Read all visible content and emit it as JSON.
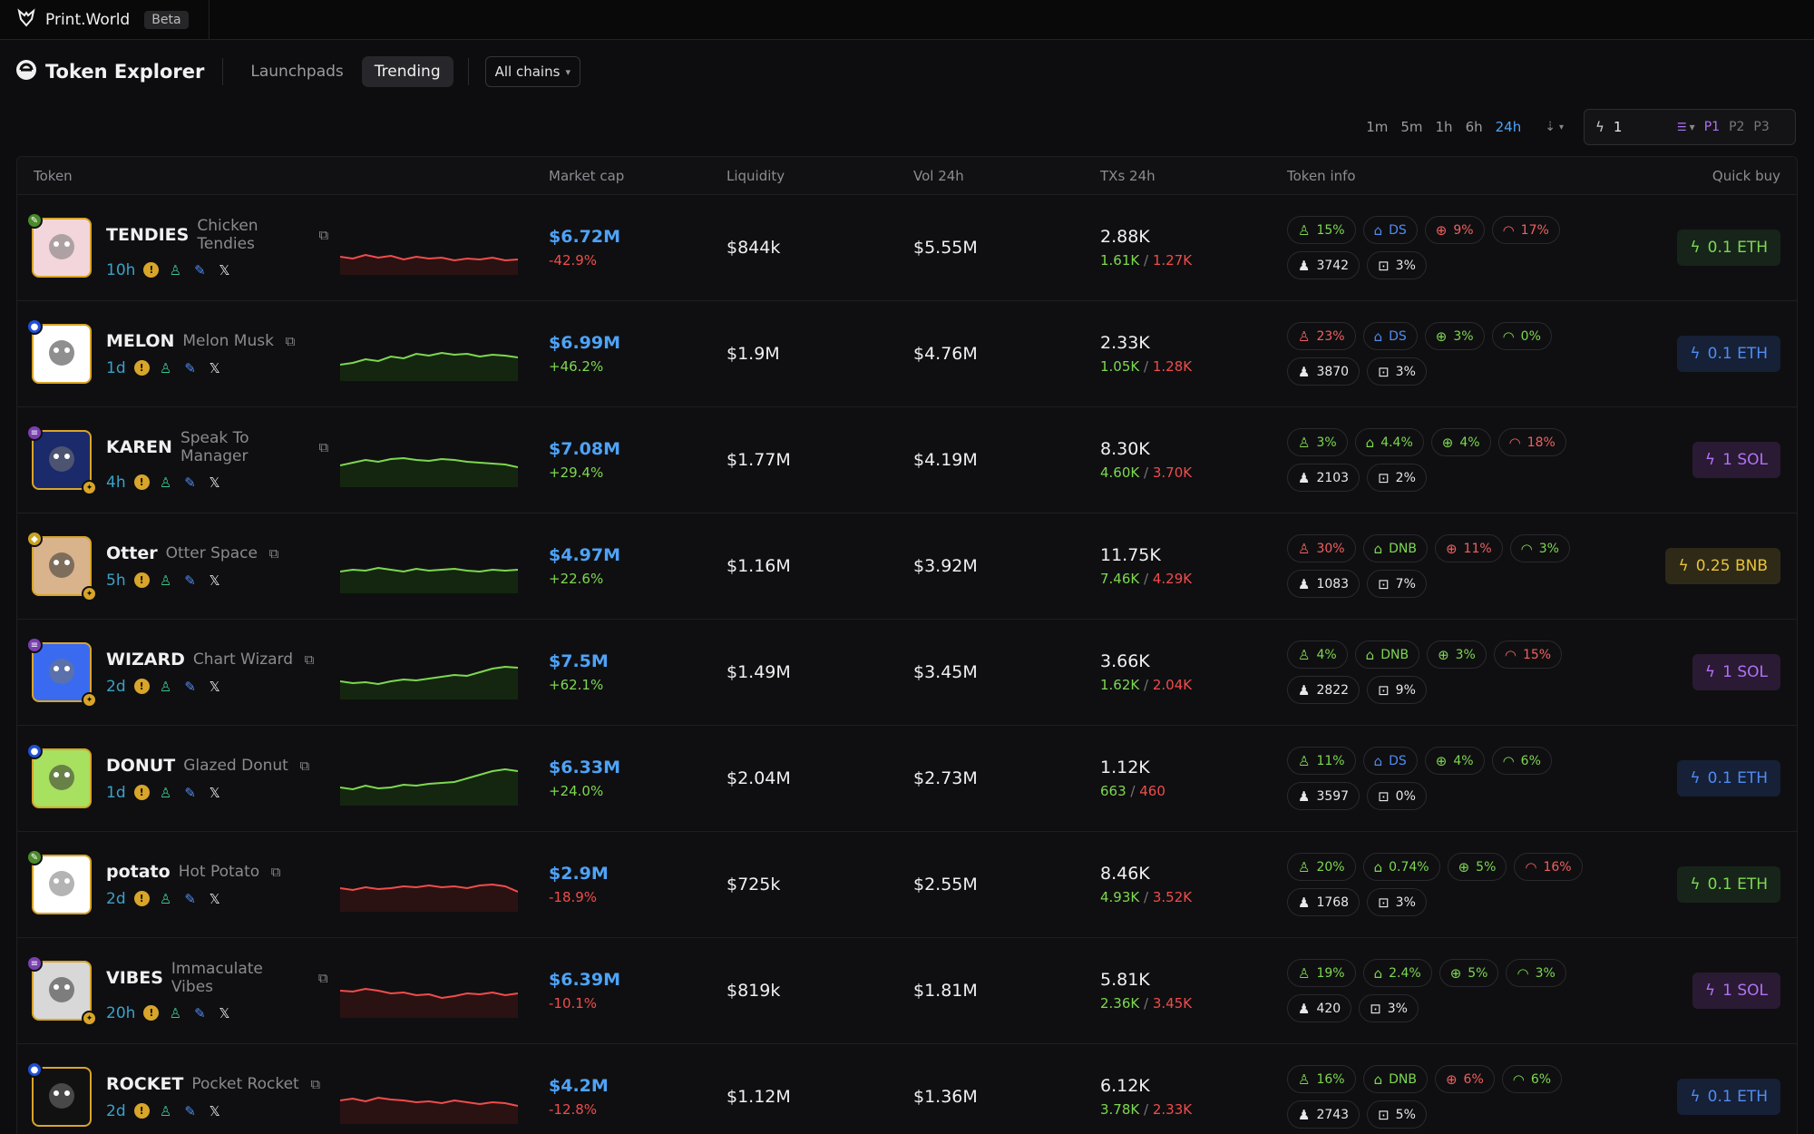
{
  "app": {
    "name": "Print.World",
    "badge": "Beta"
  },
  "nav": {
    "title": "Token Explorer",
    "tabs": [
      {
        "label": "Launchpads"
      },
      {
        "label": "Trending"
      }
    ],
    "chain_select": "All chains"
  },
  "controls": {
    "timeframes": [
      "1m",
      "5m",
      "1h",
      "6h",
      "24h"
    ],
    "active_timeframe": "24h",
    "quick_buy_amount": "1",
    "presets": [
      "P1",
      "P2",
      "P3"
    ],
    "active_preset": "P1"
  },
  "columns": {
    "token": "Token",
    "market_cap": "Market cap",
    "liquidity": "Liquidity",
    "vol": "Vol 24h",
    "txs": "TXs 24h",
    "info": "Token info",
    "quick_buy": "Quick buy"
  },
  "colors": {
    "accent_blue": "#4ea3f8",
    "up": "#7dd850",
    "down": "#f04c4c",
    "gold": "#d8a52a",
    "purple": "#b072f5"
  },
  "rows": [
    {
      "symbol": "TENDIES",
      "name": "Chicken Tendies",
      "age": "10h",
      "chain": "eth",
      "mc": "$6.72M",
      "chg": "-42.9%",
      "liq": "$844k",
      "vol": "$5.55M",
      "tx": "2.88K",
      "buys": "1.61K",
      "sells": "1.27K",
      "info": {
        "top": "15%",
        "dev": "DS",
        "snipers": "9%",
        "insiders": "17%",
        "holders": "3742",
        "bots": "3%"
      },
      "qb": "0.1 ETH"
    },
    {
      "symbol": "MELON",
      "name": "Melon Musk",
      "age": "1d",
      "chain": "base",
      "mc": "$6.99M",
      "chg": "+46.2%",
      "liq": "$1.9M",
      "vol": "$4.76M",
      "tx": "2.33K",
      "buys": "1.05K",
      "sells": "1.28K",
      "info": {
        "top": "23%",
        "dev": "DS",
        "snipers": "3%",
        "insiders": "0%",
        "holders": "3870",
        "bots": "3%"
      },
      "qb": "0.1 ETH"
    },
    {
      "symbol": "KAREN",
      "name": "Speak To Manager",
      "age": "4h",
      "chain": "sol",
      "mc": "$7.08M",
      "chg": "+29.4%",
      "liq": "$1.77M",
      "vol": "$4.19M",
      "tx": "8.30K",
      "buys": "4.60K",
      "sells": "3.70K",
      "info": {
        "top": "3%",
        "dev": "4.4%",
        "snipers": "4%",
        "insiders": "18%",
        "holders": "2103",
        "bots": "2%"
      },
      "qb": "1 SOL"
    },
    {
      "symbol": "Otter",
      "name": "Otter Space",
      "age": "5h",
      "chain": "bnb",
      "mc": "$4.97M",
      "chg": "+22.6%",
      "liq": "$1.16M",
      "vol": "$3.92M",
      "tx": "11.75K",
      "buys": "7.46K",
      "sells": "4.29K",
      "info": {
        "top": "30%",
        "dev": "DNB",
        "snipers": "11%",
        "insiders": "3%",
        "holders": "1083",
        "bots": "7%"
      },
      "qb": "0.25 BNB"
    },
    {
      "symbol": "WIZARD",
      "name": "Chart Wizard",
      "age": "2d",
      "chain": "sol",
      "mc": "$7.5M",
      "chg": "+62.1%",
      "liq": "$1.49M",
      "vol": "$3.45M",
      "tx": "3.66K",
      "buys": "1.62K",
      "sells": "2.04K",
      "info": {
        "top": "4%",
        "dev": "DNB",
        "snipers": "3%",
        "insiders": "15%",
        "holders": "2822",
        "bots": "9%"
      },
      "qb": "1 SOL"
    },
    {
      "symbol": "DONUT",
      "name": "Glazed Donut",
      "age": "1d",
      "chain": "base",
      "mc": "$6.33M",
      "chg": "+24.0%",
      "liq": "$2.04M",
      "vol": "$2.73M",
      "tx": "1.12K",
      "buys": "663",
      "sells": "460",
      "info": {
        "top": "11%",
        "dev": "DS",
        "snipers": "4%",
        "insiders": "6%",
        "holders": "3597",
        "bots": "0%"
      },
      "qb": "0.1 ETH"
    },
    {
      "symbol": "potato",
      "name": "Hot Potato",
      "age": "2d",
      "chain": "eth",
      "mc": "$2.9M",
      "chg": "-18.9%",
      "liq": "$725k",
      "vol": "$2.55M",
      "tx": "8.46K",
      "buys": "4.93K",
      "sells": "3.52K",
      "info": {
        "top": "20%",
        "dev": "0.74%",
        "snipers": "5%",
        "insiders": "16%",
        "holders": "1768",
        "bots": "3%"
      },
      "qb": "0.1 ETH"
    },
    {
      "symbol": "VIBES",
      "name": "Immaculate Vibes",
      "age": "20h",
      "chain": "sol",
      "mc": "$6.39M",
      "chg": "-10.1%",
      "liq": "$819k",
      "vol": "$1.81M",
      "tx": "5.81K",
      "buys": "2.36K",
      "sells": "3.45K",
      "info": {
        "top": "19%",
        "dev": "2.4%",
        "snipers": "5%",
        "insiders": "3%",
        "holders": "420",
        "bots": "3%"
      },
      "qb": "1 SOL"
    },
    {
      "symbol": "ROCKET",
      "name": "Pocket Rocket",
      "age": "2d",
      "chain": "base",
      "mc": "$4.2M",
      "chg": "-12.8%",
      "liq": "$1.12M",
      "vol": "$1.36M",
      "tx": "6.12K",
      "buys": "3.78K",
      "sells": "2.33K",
      "info": {
        "top": "16%",
        "dev": "DNB",
        "snipers": "6%",
        "insiders": "6%",
        "holders": "2743",
        "bots": "5%"
      },
      "qb": "0.1 ETH"
    }
  ]
}
